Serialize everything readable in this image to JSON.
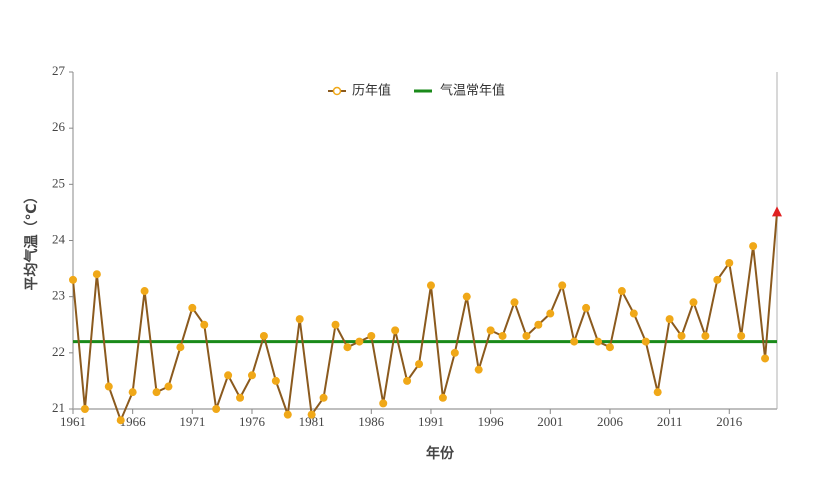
{
  "chart_data": {
    "type": "line",
    "x_label": "年份",
    "y_label": "平均气温（℃）",
    "x": [
      1961,
      1962,
      1963,
      1964,
      1965,
      1966,
      1967,
      1968,
      1969,
      1970,
      1971,
      1972,
      1973,
      1974,
      1975,
      1976,
      1977,
      1978,
      1979,
      1980,
      1981,
      1982,
      1983,
      1984,
      1985,
      1986,
      1987,
      1988,
      1989,
      1990,
      1991,
      1992,
      1993,
      1994,
      1995,
      1996,
      1997,
      1998,
      1999,
      2000,
      2001,
      2002,
      2003,
      2004,
      2005,
      2006,
      2007,
      2008,
      2009,
      2010,
      2011,
      2012,
      2013,
      2014,
      2015,
      2016,
      2017,
      2018,
      2019,
      2020
    ],
    "series": [
      {
        "name": "历年值",
        "color": "#8b5a1e",
        "marker_color": "#f0a818",
        "values": [
          23.3,
          21.0,
          23.4,
          21.4,
          20.8,
          21.3,
          23.1,
          21.3,
          21.4,
          22.1,
          22.8,
          22.5,
          21.0,
          21.6,
          21.2,
          21.6,
          22.3,
          21.5,
          20.9,
          22.6,
          20.9,
          21.2,
          22.5,
          22.1,
          22.2,
          22.3,
          21.1,
          22.4,
          21.5,
          21.8,
          23.2,
          21.2,
          22.0,
          23.0,
          21.7,
          22.4,
          22.3,
          22.9,
          22.3,
          22.5,
          22.7,
          23.2,
          22.2,
          22.8,
          22.2,
          22.1,
          23.1,
          22.7,
          22.2,
          21.3,
          22.6,
          22.3,
          22.9,
          22.3,
          23.3,
          23.6,
          22.3,
          23.9,
          21.9,
          24.5
        ],
        "last_marker": {
          "shape": "triangle",
          "color": "#e02020"
        }
      }
    ],
    "reference_line": {
      "name": "气温常年值",
      "color": "#1a8a1a",
      "value": 22.2
    },
    "xlim": [
      1961,
      2020
    ],
    "xticks": [
      1961,
      1966,
      1971,
      1976,
      1981,
      1986,
      1991,
      1996,
      2001,
      2006,
      2011,
      2016
    ],
    "ylim": [
      21,
      27
    ],
    "yticks": [
      21,
      22,
      23,
      24,
      25,
      26,
      27
    ]
  }
}
